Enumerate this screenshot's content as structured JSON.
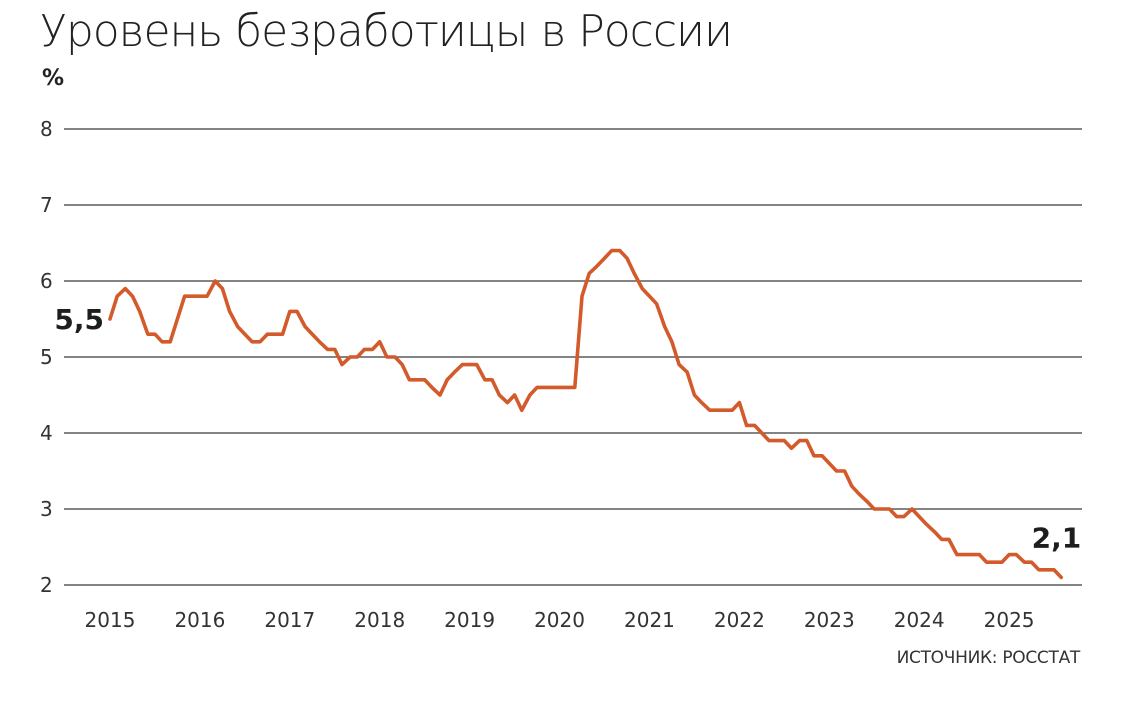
{
  "chart_data": {
    "type": "line",
    "title": "Уровень безработицы в России",
    "ylabel": "%",
    "source": "ИСТОЧНИК: РОССТАТ",
    "ylim": [
      2,
      8
    ],
    "yticks": [
      "2",
      "3",
      "4",
      "5",
      "6",
      "7",
      "8"
    ],
    "xlim": [
      2015,
      2026
    ],
    "xticks": [
      "2015",
      "2016",
      "2017",
      "2018",
      "2019",
      "2020",
      "2021",
      "2022",
      "2023",
      "2024",
      "2025"
    ],
    "grid": true,
    "line_color": "#d35a2a",
    "series": [
      {
        "x": [
          2015.0,
          2015.08,
          2015.17,
          2015.25,
          2015.33,
          2015.42,
          2015.5,
          2015.58,
          2015.67,
          2015.75,
          2015.83,
          2015.92,
          2016.0,
          2016.08,
          2016.17,
          2016.25,
          2016.33,
          2016.42,
          2016.5,
          2016.58,
          2016.67,
          2016.75,
          2016.83,
          2016.92,
          2017.0,
          2017.08,
          2017.17,
          2017.25,
          2017.33,
          2017.42,
          2017.5,
          2017.58,
          2017.67,
          2017.75,
          2017.83,
          2017.92,
          2018.0,
          2018.08,
          2018.17,
          2018.25,
          2018.33,
          2018.42,
          2018.5,
          2018.58,
          2018.67,
          2018.75,
          2018.83,
          2018.92,
          2019.0,
          2019.08,
          2019.17,
          2019.25,
          2019.33,
          2019.42,
          2019.5,
          2019.58,
          2019.67,
          2019.75,
          2019.83,
          2019.92,
          2020.0,
          2020.08,
          2020.17,
          2020.25,
          2020.33,
          2020.42,
          2020.5,
          2020.58,
          2020.67,
          2020.75,
          2020.83,
          2020.92,
          2021.0,
          2021.08,
          2021.17,
          2021.25,
          2021.33,
          2021.42,
          2021.5,
          2021.58,
          2021.67,
          2021.75,
          2021.83,
          2021.92,
          2022.0,
          2022.08,
          2022.17,
          2022.25,
          2022.33,
          2022.42,
          2022.5,
          2022.58,
          2022.67,
          2022.75,
          2022.83,
          2022.92,
          2023.0,
          2023.08,
          2023.17,
          2023.25,
          2023.33,
          2023.42,
          2023.5,
          2023.58,
          2023.67,
          2023.75,
          2023.83,
          2023.92,
          2024.0,
          2024.08,
          2024.17,
          2024.25,
          2024.33,
          2024.42,
          2024.5,
          2024.58,
          2024.67,
          2024.75,
          2024.83,
          2024.92,
          2025.0,
          2025.08,
          2025.17,
          2025.25,
          2025.33,
          2025.42,
          2025.5,
          2025.58
        ],
        "values": [
          5.5,
          5.8,
          5.9,
          5.8,
          5.6,
          5.3,
          5.3,
          5.2,
          5.2,
          5.5,
          5.8,
          5.8,
          5.8,
          5.8,
          6.0,
          5.9,
          5.6,
          5.4,
          5.3,
          5.2,
          5.2,
          5.3,
          5.3,
          5.3,
          5.6,
          5.6,
          5.4,
          5.3,
          5.2,
          5.1,
          5.1,
          4.9,
          5.0,
          5.0,
          5.1,
          5.1,
          5.2,
          5.0,
          5.0,
          4.9,
          4.7,
          4.7,
          4.7,
          4.6,
          4.5,
          4.7,
          4.8,
          4.9,
          4.9,
          4.9,
          4.7,
          4.7,
          4.5,
          4.4,
          4.5,
          4.3,
          4.5,
          4.6,
          4.6,
          4.6,
          4.6,
          4.6,
          4.6,
          5.8,
          6.1,
          6.2,
          6.3,
          6.4,
          6.4,
          6.3,
          6.1,
          5.9,
          5.8,
          5.7,
          5.4,
          5.2,
          4.9,
          4.8,
          4.5,
          4.4,
          4.3,
          4.3,
          4.3,
          4.3,
          4.4,
          4.1,
          4.1,
          4.0,
          3.9,
          3.9,
          3.9,
          3.8,
          3.9,
          3.9,
          3.7,
          3.7,
          3.6,
          3.5,
          3.5,
          3.3,
          3.2,
          3.1,
          3.0,
          3.0,
          3.0,
          2.9,
          2.9,
          3.0,
          2.9,
          2.8,
          2.7,
          2.6,
          2.6,
          2.4,
          2.4,
          2.4,
          2.4,
          2.3,
          2.3,
          2.3,
          2.4,
          2.4,
          2.3,
          2.3,
          2.2,
          2.2,
          2.2,
          2.1
        ]
      }
    ],
    "annotations": [
      {
        "text": "5,5",
        "x": 2015.0,
        "y": 5.5,
        "anchor": "start"
      },
      {
        "text": "2,1",
        "x": 2025.58,
        "y": 2.1,
        "anchor": "end"
      }
    ]
  }
}
